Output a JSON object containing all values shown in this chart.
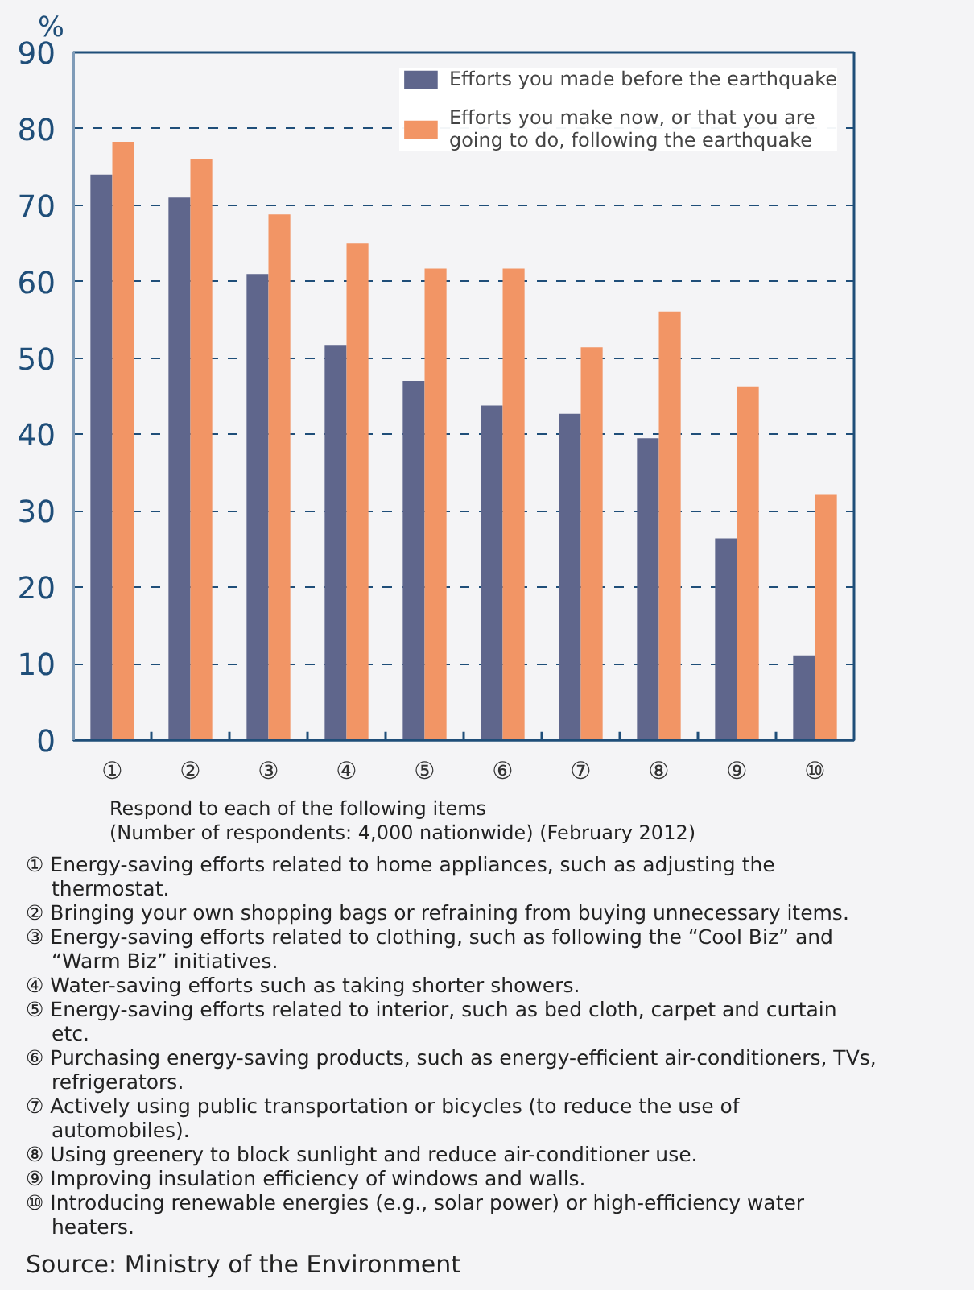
{
  "chart_data": {
    "type": "bar",
    "ylabel": "%",
    "categories": [
      "①",
      "②",
      "③",
      "④",
      "⑤",
      "⑥",
      "⑦",
      "⑧",
      "⑨",
      "⑩"
    ],
    "series": [
      {
        "name": "Efforts you made before the earthquake",
        "color": "#5f668c",
        "values": [
          74,
          71,
          61,
          51.6,
          47,
          43.8,
          42.7,
          39.5,
          26.4,
          11.1
        ]
      },
      {
        "name": "Efforts you make now, or that you are going to do, following the earthquake",
        "color": "#f29565",
        "values": [
          78.3,
          76,
          68.8,
          65,
          61.7,
          61.7,
          51.4,
          56.1,
          46.3,
          32.1
        ]
      }
    ],
    "ylim": [
      0,
      90
    ],
    "yticks": [
      0,
      10,
      20,
      30,
      40,
      50,
      60,
      70,
      80,
      90
    ],
    "grid": "y",
    "legend": "top right",
    "annotations": [
      "Respond to each of the following items",
      "(Number of respondents: 4,000 nationwide) (February 2012)",
      "① Energy-saving efforts related to home appliances, such as adjusting the thermostat.",
      "② Bringing your own shopping bags or refraining from buying unnecessary items.",
      "③ Energy-saving efforts related to clothing, such as following the “Cool Biz” and “Warm Biz” initiatives.",
      "④ Water-saving efforts such as taking shorter showers.",
      "⑤ Energy-saving efforts related to interior, such as bed cloth, carpet and curtain etc.",
      "⑥ Purchasing energy-saving products, such as energy-efficient air-conditioners, TVs, refrigerators.",
      "⑦ Actively using public transportation or bicycles (to reduce the use of automobiles).",
      "⑧ Using greenery to block sunlight and reduce air-conditioner use.",
      "⑨ Improving insulation efficiency of windows and walls.",
      "⑩ Introducing renewable energies (e.g., solar power) or high-efficiency water heaters.",
      "Source: Ministry of the Environment"
    ]
  }
}
